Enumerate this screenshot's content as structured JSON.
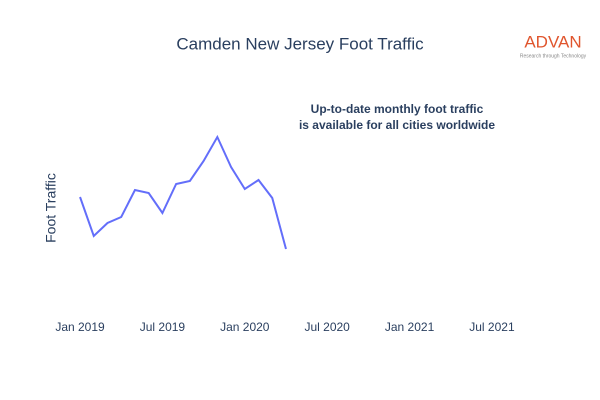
{
  "chart_data": {
    "type": "line",
    "title": "Camden New Jersey Foot Traffic",
    "y_label": "Foot Traffic",
    "annotation": [
      "Up-to-date monthly foot traffic",
      "is available for all cities worldwide"
    ],
    "logo": {
      "name": "ADVAN",
      "tagline": "Research through Technology"
    },
    "x": [
      "2019-01",
      "2019-02",
      "2019-03",
      "2019-04",
      "2019-05",
      "2019-06",
      "2019-07",
      "2019-08",
      "2019-09",
      "2019-10",
      "2019-11",
      "2019-12",
      "2020-01",
      "2020-02",
      "2020-03",
      "2020-04"
    ],
    "series": [
      {
        "name": "Foot Traffic",
        "color": "#636efa",
        "values": [
          103,
          64,
          77,
          83,
          110,
          107,
          87,
          116,
          119,
          139,
          163,
          133,
          111,
          120,
          102,
          51
        ]
      }
    ],
    "xlim": [
      "2018-12",
      "2021-09"
    ],
    "xticks": [
      {
        "value": "2019-01",
        "label": "Jan 2019"
      },
      {
        "value": "2019-07",
        "label": "Jul 2019"
      },
      {
        "value": "2020-01",
        "label": "Jan 2020"
      },
      {
        "value": "2020-07",
        "label": "Jul 2020"
      },
      {
        "value": "2021-01",
        "label": "Jan 2021"
      },
      {
        "value": "2021-07",
        "label": "Jul 2021"
      }
    ],
    "ylim": [
      0,
      200
    ]
  }
}
